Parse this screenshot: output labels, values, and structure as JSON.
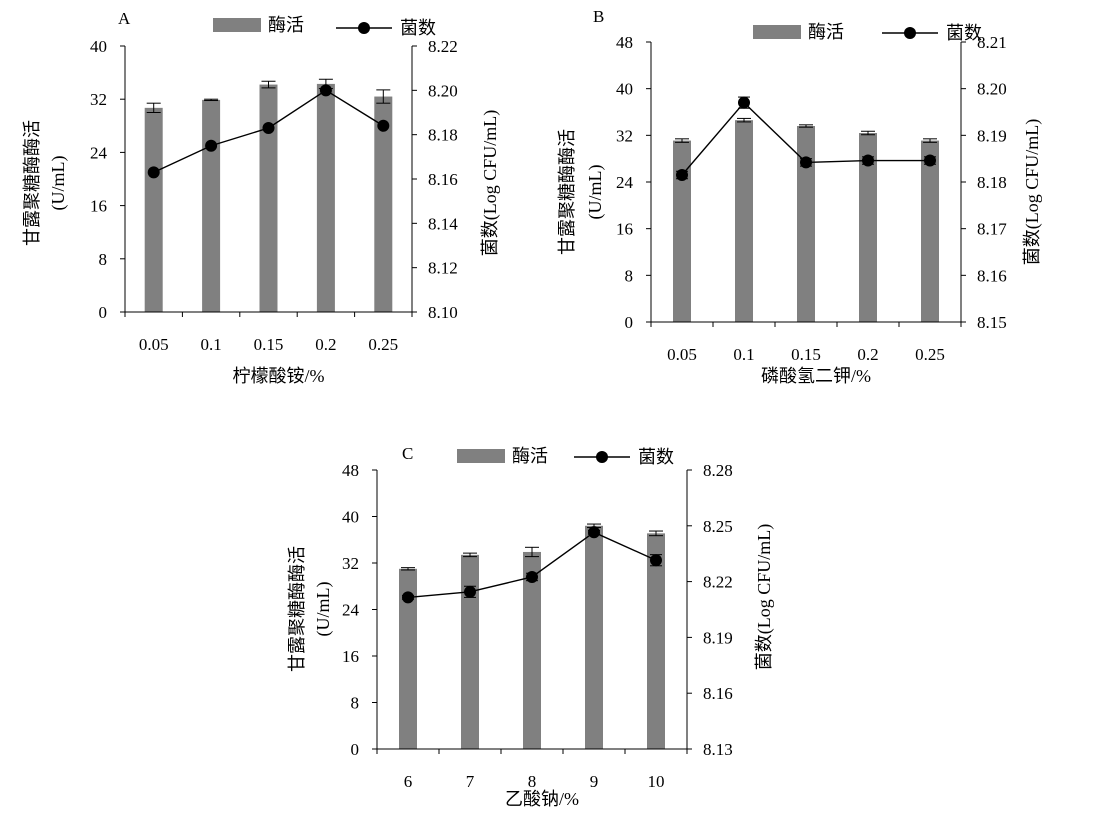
{
  "legend": {
    "bar_label": "酶活",
    "line_label": "菌数"
  },
  "colors": {
    "bar": "#808080",
    "line": "#000000",
    "axis": "#000000"
  },
  "chart_data": [
    {
      "type": "bar+line",
      "panel_label": "A",
      "categories": [
        "0.05",
        "0.1",
        "0.15",
        "0.2",
        "0.25"
      ],
      "xlabel": "柠檬酸铵/%",
      "ylabel_left": "甘露聚糖酶酶活",
      "ylabel_left_unit": "(U/mL)",
      "ylabel_right": "菌数(Log CFU/mL)",
      "left_axis": {
        "min": 0,
        "max": 40,
        "ticks": [
          "0",
          "8",
          "16",
          "24",
          "32",
          "40"
        ]
      },
      "right_axis": {
        "min": 8.1,
        "max": 8.22,
        "ticks": [
          "8.10",
          "8.12",
          "8.14",
          "8.16",
          "8.18",
          "8.20",
          "8.22"
        ]
      },
      "series": [
        {
          "name": "酶活",
          "type": "bar",
          "axis": "left",
          "values": [
            30.7,
            31.9,
            34.2,
            34.3,
            32.4
          ],
          "errors": [
            0.7,
            0.1,
            0.5,
            0.7,
            1.0
          ]
        },
        {
          "name": "菌数",
          "type": "line",
          "axis": "right",
          "values": [
            8.163,
            8.175,
            8.183,
            8.2,
            8.184
          ],
          "errors": [
            0,
            0,
            0,
            0,
            0
          ]
        }
      ]
    },
    {
      "type": "bar+line",
      "panel_label": "B",
      "categories": [
        "0.05",
        "0.1",
        "0.15",
        "0.2",
        "0.25"
      ],
      "xlabel": "磷酸氢二钾/%",
      "ylabel_left": "甘露聚糖酶酶活",
      "ylabel_left_unit": "(U/mL)",
      "ylabel_right": "菌数(Log CFU/mL)",
      "left_axis": {
        "min": 0,
        "max": 48,
        "ticks": [
          "0",
          "8",
          "16",
          "24",
          "32",
          "40",
          "48"
        ]
      },
      "right_axis": {
        "min": 8.15,
        "max": 8.21,
        "ticks": [
          "8.15",
          "8.16",
          "8.17",
          "8.18",
          "8.19",
          "8.20",
          "8.21"
        ]
      },
      "series": [
        {
          "name": "酶活",
          "type": "bar",
          "axis": "left",
          "values": [
            31.1,
            34.6,
            33.6,
            32.4,
            31.1
          ],
          "errors": [
            0.3,
            0.3,
            0.2,
            0.3,
            0.3
          ]
        },
        {
          "name": "菌数",
          "type": "line",
          "axis": "right",
          "values": [
            8.1815,
            8.197,
            8.1842,
            8.1846,
            8.1846
          ],
          "errors": [
            0.0008,
            0.0012,
            0.0008,
            0.0008,
            0.0008
          ]
        }
      ]
    },
    {
      "type": "bar+line",
      "panel_label": "C",
      "categories": [
        "6",
        "7",
        "8",
        "9",
        "10"
      ],
      "xlabel": "乙酸钠/%",
      "ylabel_left": "甘露聚糖酶酶活",
      "ylabel_left_unit": "(U/mL)",
      "ylabel_right": "菌数(Log CFU/mL)",
      "left_axis": {
        "min": 0,
        "max": 48,
        "ticks": [
          "0",
          "8",
          "16",
          "24",
          "32",
          "40",
          "48"
        ]
      },
      "right_axis": {
        "min": 8.13,
        "max": 8.28,
        "ticks": [
          "8.13",
          "8.16",
          "8.19",
          "8.22",
          "8.25",
          "8.28"
        ]
      },
      "series": [
        {
          "name": "酶活",
          "type": "bar",
          "axis": "left",
          "values": [
            31.0,
            33.4,
            33.9,
            38.4,
            37.1
          ],
          "errors": [
            0.2,
            0.3,
            0.8,
            0.3,
            0.4
          ]
        },
        {
          "name": "菌数",
          "type": "line",
          "axis": "right",
          "values": [
            8.2115,
            8.2145,
            8.2225,
            8.2465,
            8.2315
          ],
          "errors": [
            0.001,
            0.003,
            0.002,
            0.001,
            0.003
          ]
        }
      ]
    }
  ]
}
